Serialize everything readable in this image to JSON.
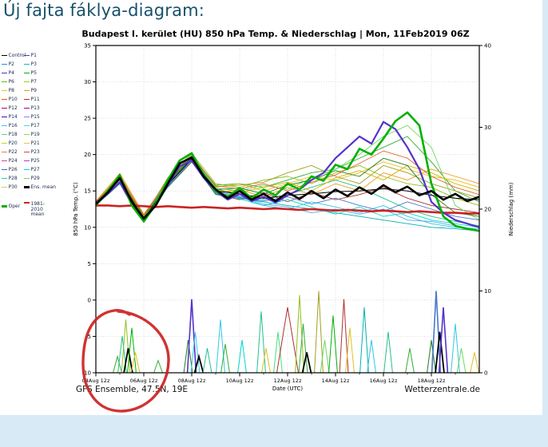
{
  "page": {
    "heading": "Új fajta fáklya-diagram:",
    "footer_left": "GFS Ensemble, 47.5N, 19E",
    "footer_right": "Wetterzentrale.de"
  },
  "annotation": {
    "hand_drawn_circle": {
      "color": "#cc2222",
      "circles": "precipitation spike cluster near 05-06 Aug"
    }
  },
  "legend": {
    "items": [
      {
        "label": "Control",
        "color": "#000000"
      },
      {
        "label": "P1",
        "color": "#4040c0"
      },
      {
        "label": "P2",
        "color": "#00a0e0"
      },
      {
        "label": "P3",
        "color": "#00c0c0"
      },
      {
        "label": "P4",
        "color": "#5533cc"
      },
      {
        "label": "P5",
        "color": "#00b000"
      },
      {
        "label": "P6",
        "color": "#60c000"
      },
      {
        "label": "P7",
        "color": "#a0d000"
      },
      {
        "label": "P8",
        "color": "#e0d000"
      },
      {
        "label": "P9",
        "color": "#f0a000"
      },
      {
        "label": "P10",
        "color": "#e06000"
      },
      {
        "label": "P11",
        "color": "#d02020"
      },
      {
        "label": "P12",
        "color": "#c00060"
      },
      {
        "label": "P13",
        "color": "#a000a0"
      },
      {
        "label": "P14",
        "color": "#6000c0"
      },
      {
        "label": "P15",
        "color": "#8080ff"
      },
      {
        "label": "P16",
        "color": "#40c0ff"
      },
      {
        "label": "P17",
        "color": "#40e0d0"
      },
      {
        "label": "P18",
        "color": "#40e080"
      },
      {
        "label": "P19",
        "color": "#80e040"
      },
      {
        "label": "P20",
        "color": "#c0e000"
      },
      {
        "label": "P21",
        "color": "#f0c040"
      },
      {
        "label": "P22",
        "color": "#f08040"
      },
      {
        "label": "P23",
        "color": "#e04040"
      },
      {
        "label": "P24",
        "color": "#e040a0"
      },
      {
        "label": "P25",
        "color": "#a040e0"
      },
      {
        "label": "P26",
        "color": "#4060e0"
      },
      {
        "label": "P27",
        "color": "#00d0f0"
      },
      {
        "label": "P28",
        "color": "#00e0a0"
      },
      {
        "label": "P29",
        "color": "#80d060"
      },
      {
        "label": "P30",
        "color": "#d0d060"
      },
      {
        "label": "Ens. mean",
        "color": "#000000",
        "bold": true
      },
      {
        "label": "Oper",
        "color": "#00b000",
        "bold": true,
        "gap": true
      },
      {
        "label": "1981-2010 mean",
        "color": "#cc2222",
        "gap": true,
        "wrap": true
      }
    ]
  },
  "chart_data": {
    "type": "line",
    "subtype": "ensemble-plume",
    "title": "Budapest I. kerület  (HU)  850 hPa Temp. & Niederschlag | Mon, 11Feb2019 06Z",
    "x_axis": {
      "label": "Date (UTC)",
      "tick_labels": [
        "04Aug 12z",
        "06Aug 12z",
        "08Aug 12z",
        "10Aug 12z",
        "12Aug 12z",
        "14Aug 12z",
        "16Aug 12z",
        "18Aug 12z"
      ],
      "tick_days": [
        0,
        2,
        4,
        6,
        8,
        10,
        12,
        14
      ],
      "range_days": [
        0,
        16
      ]
    },
    "y_left": {
      "label": "850 hPa Temp. (°C)",
      "min": -10,
      "max": 35,
      "ticks": [
        35,
        30,
        25,
        20,
        15,
        10,
        5,
        0,
        -5,
        -10
      ]
    },
    "y_right": {
      "label": "Niederschlag (mm)",
      "min": 0,
      "max": 40,
      "ticks": [
        40,
        30,
        20,
        10,
        0
      ]
    },
    "main_series": [
      {
        "name": "1981-2010 mean",
        "color": "#cc2222",
        "width": 2.6,
        "step": 0.5,
        "values": [
          13.0,
          13.0,
          12.9,
          13.0,
          12.9,
          12.8,
          12.9,
          12.8,
          12.7,
          12.8,
          12.7,
          12.6,
          12.7,
          12.6,
          12.5,
          12.6,
          12.5,
          12.4,
          12.5,
          12.4,
          12.3,
          12.4,
          12.3,
          12.2,
          12.3,
          12.2,
          12.1,
          12.2,
          12.1,
          12.0,
          12.0,
          11.9,
          11.9
        ]
      },
      {
        "name": "Control",
        "color": "#000000",
        "width": 1.0,
        "step": 1,
        "values": [
          13.1,
          16.6,
          11.1,
          15.9,
          19.4,
          15.0,
          14.6,
          14.0,
          14.4,
          14.6,
          14.9,
          15.0,
          15.3,
          15.0,
          14.4,
          14.0,
          13.8
        ]
      },
      {
        "name": "P4 highlighted member",
        "color": "#5533cc",
        "width": 2.2,
        "step": 0.5,
        "values": [
          13.4,
          14.6,
          16.2,
          13.2,
          11.0,
          13.0,
          15.8,
          18.4,
          19.2,
          16.8,
          15.0,
          13.8,
          14.6,
          13.6,
          14.2,
          13.4,
          14.4,
          15.2,
          16.5,
          17.5,
          19.5,
          21.0,
          22.5,
          21.5,
          24.5,
          23.5,
          21.0,
          18.0,
          13.5,
          12.0,
          11.0,
          10.5,
          10.0
        ]
      },
      {
        "name": "Oper",
        "color": "#00b000",
        "width": 2.6,
        "step": 0.5,
        "values": [
          13.0,
          15.0,
          17.2,
          13.0,
          10.8,
          13.2,
          16.5,
          19.2,
          20.2,
          17.2,
          15.0,
          14.2,
          15.4,
          14.0,
          15.2,
          14.4,
          16.0,
          15.2,
          17.0,
          16.4,
          18.6,
          18.0,
          20.8,
          20.0,
          22.2,
          24.6,
          25.8,
          24.0,
          16.0,
          11.5,
          10.2,
          9.8,
          9.5
        ]
      },
      {
        "name": "Ens. mean",
        "color": "#000000",
        "width": 2.6,
        "step": 0.5,
        "values": [
          13.2,
          14.8,
          16.8,
          13.5,
          11.2,
          13.0,
          16.0,
          18.8,
          19.6,
          17.0,
          15.2,
          14.0,
          15.0,
          13.8,
          14.6,
          13.6,
          14.8,
          13.9,
          15.0,
          14.0,
          15.2,
          14.3,
          15.5,
          14.6,
          15.8,
          14.8,
          15.6,
          14.4,
          15.0,
          13.8,
          14.6,
          13.6,
          14.2
        ]
      }
    ],
    "members": [
      {
        "color": "#00b0b0",
        "step": 1,
        "values": [
          13.0,
          16.5,
          11.0,
          15.5,
          19.0,
          14.5,
          14.0,
          13.5,
          13.0,
          12.5,
          12.0,
          11.5,
          11.0,
          10.5,
          10.0,
          9.8,
          9.5
        ]
      },
      {
        "color": "#30c8e8",
        "step": 1,
        "values": [
          13.5,
          17.0,
          11.5,
          16.5,
          20.0,
          15.0,
          14.2,
          13.0,
          12.5,
          13.5,
          12.8,
          12.0,
          13.0,
          11.5,
          10.5,
          10.0,
          9.8
        ]
      },
      {
        "color": "#30b030",
        "step": 1,
        "values": [
          13.0,
          16.0,
          10.8,
          16.2,
          19.8,
          15.8,
          16.0,
          15.5,
          16.5,
          17.5,
          18.0,
          19.5,
          21.0,
          22.5,
          19.0,
          15.0,
          13.5
        ]
      },
      {
        "color": "#90c020",
        "step": 1,
        "values": [
          13.4,
          17.2,
          11.4,
          16.8,
          20.2,
          16.0,
          15.5,
          16.5,
          17.0,
          16.0,
          17.5,
          18.5,
          17.0,
          16.0,
          15.5,
          14.0,
          13.0
        ]
      },
      {
        "color": "#e0c020",
        "step": 1,
        "values": [
          13.2,
          16.6,
          11.0,
          15.8,
          19.4,
          15.5,
          16.0,
          15.0,
          16.0,
          17.0,
          16.5,
          17.5,
          19.0,
          18.0,
          17.0,
          16.5,
          15.5
        ]
      },
      {
        "color": "#f09820",
        "step": 1,
        "values": [
          13.6,
          17.4,
          11.8,
          16.4,
          19.2,
          14.8,
          15.2,
          14.2,
          15.5,
          14.5,
          16.0,
          15.0,
          17.5,
          16.5,
          18.0,
          17.0,
          16.0
        ]
      },
      {
        "color": "#b03030",
        "step": 1,
        "values": [
          13.0,
          16.2,
          10.9,
          15.6,
          19.0,
          14.6,
          13.8,
          14.8,
          13.5,
          14.8,
          13.8,
          14.5,
          15.5,
          14.0,
          13.0,
          12.5,
          12.0
        ]
      },
      {
        "color": "#20c090",
        "step": 1,
        "values": [
          13.3,
          16.9,
          11.3,
          16.1,
          19.7,
          15.3,
          14.5,
          13.8,
          14.5,
          15.5,
          16.5,
          15.5,
          14.0,
          12.5,
          11.5,
          10.8,
          10.2
        ]
      },
      {
        "color": "#58a8e8",
        "step": 1,
        "values": [
          13.1,
          16.4,
          11.1,
          15.9,
          19.3,
          14.9,
          14.3,
          13.2,
          12.8,
          12.0,
          12.5,
          11.8,
          12.5,
          11.0,
          10.8,
          10.2,
          9.6
        ]
      },
      {
        "color": "#a0a020",
        "step": 1,
        "values": [
          13.5,
          17.1,
          11.6,
          16.6,
          20.0,
          15.6,
          15.8,
          16.2,
          17.5,
          18.5,
          17.0,
          16.0,
          18.5,
          17.5,
          16.0,
          15.0,
          14.0
        ]
      },
      {
        "color": "#70d860",
        "step": 1,
        "values": [
          13.2,
          16.7,
          11.2,
          16.3,
          19.9,
          15.4,
          15.0,
          15.8,
          15.2,
          16.8,
          18.0,
          20.0,
          22.5,
          24.0,
          21.0,
          13.0,
          11.0
        ]
      },
      {
        "color": "#d8b000",
        "step": 1,
        "values": [
          13.4,
          16.5,
          11.5,
          16.0,
          19.5,
          15.1,
          14.8,
          15.5,
          16.2,
          15.0,
          16.8,
          17.8,
          16.5,
          18.5,
          17.5,
          16.0,
          15.0
        ]
      },
      {
        "color": "#00d8c8",
        "step": 1,
        "values": [
          13.1,
          16.3,
          11.0,
          15.7,
          19.1,
          14.7,
          13.9,
          13.0,
          13.8,
          12.8,
          11.8,
          12.8,
          11.5,
          12.0,
          11.0,
          10.5,
          10.0
        ]
      },
      {
        "color": "#208020",
        "step": 1,
        "values": [
          13.3,
          17.0,
          11.4,
          16.2,
          19.6,
          15.2,
          15.4,
          14.6,
          15.8,
          16.5,
          17.8,
          17.0,
          19.5,
          18.5,
          14.5,
          12.0,
          11.5
        ]
      },
      {
        "color": "#e06828",
        "step": 1,
        "values": [
          13.5,
          16.8,
          11.7,
          16.5,
          19.8,
          15.7,
          15.3,
          16.0,
          15.0,
          16.2,
          17.2,
          18.8,
          20.5,
          19.5,
          17.0,
          15.5,
          14.5
        ]
      },
      {
        "color": "#4878c8",
        "step": 1,
        "values": [
          13.0,
          16.1,
          10.9,
          15.8,
          19.2,
          14.8,
          14.1,
          13.6,
          14.2,
          13.2,
          14.0,
          13.0,
          12.2,
          13.5,
          12.5,
          11.5,
          11.0
        ]
      }
    ],
    "precip_spikes": [
      {
        "x": 0.9,
        "h": 2.0,
        "color": "#30b030"
      },
      {
        "x": 1.1,
        "h": 4.5,
        "color": "#20c090"
      },
      {
        "x": 1.25,
        "h": 6.5,
        "color": "#90c020"
      },
      {
        "x": 1.35,
        "h": 3.0,
        "color": "#000000",
        "lw": 1.8
      },
      {
        "x": 1.5,
        "h": 5.5,
        "color": "#00b000"
      },
      {
        "x": 1.65,
        "h": 2.5,
        "color": "#e0c020"
      },
      {
        "x": 2.6,
        "h": 1.5,
        "color": "#30b030"
      },
      {
        "x": 3.85,
        "h": 4.0,
        "color": "#208020"
      },
      {
        "x": 4.0,
        "h": 9.0,
        "color": "#5533cc",
        "lw": 1.6
      },
      {
        "x": 4.15,
        "h": 5.0,
        "color": "#30c8e8"
      },
      {
        "x": 4.3,
        "h": 2.0,
        "color": "#000000",
        "lw": 1.8
      },
      {
        "x": 4.65,
        "h": 3.0,
        "color": "#20c090"
      },
      {
        "x": 5.2,
        "h": 6.5,
        "color": "#30c8e8"
      },
      {
        "x": 5.4,
        "h": 3.5,
        "color": "#30b030"
      },
      {
        "x": 6.1,
        "h": 4.0,
        "color": "#00d8c8"
      },
      {
        "x": 6.9,
        "h": 7.5,
        "color": "#20c090"
      },
      {
        "x": 7.1,
        "h": 3.0,
        "color": "#e0c020"
      },
      {
        "x": 7.6,
        "h": 5.0,
        "color": "#40e080"
      },
      {
        "x": 8.0,
        "h": 8.0,
        "color": "#b03030",
        "w": 0.45
      },
      {
        "x": 8.5,
        "h": 9.5,
        "color": "#90c020"
      },
      {
        "x": 8.65,
        "h": 6.0,
        "color": "#30b030"
      },
      {
        "x": 8.8,
        "h": 2.5,
        "color": "#000000",
        "lw": 1.8
      },
      {
        "x": 9.3,
        "h": 10.0,
        "color": "#a0a020"
      },
      {
        "x": 9.55,
        "h": 4.0,
        "color": "#70d860"
      },
      {
        "x": 9.9,
        "h": 7.0,
        "color": "#00b000"
      },
      {
        "x": 10.35,
        "h": 9.0,
        "color": "#b03030"
      },
      {
        "x": 10.6,
        "h": 5.5,
        "color": "#e0c020"
      },
      {
        "x": 11.2,
        "h": 8.0,
        "color": "#00b0b0"
      },
      {
        "x": 11.5,
        "h": 4.0,
        "color": "#30c8e8"
      },
      {
        "x": 12.2,
        "h": 5.0,
        "color": "#20c090"
      },
      {
        "x": 13.1,
        "h": 3.0,
        "color": "#30b030"
      },
      {
        "x": 14.0,
        "h": 4.0,
        "color": "#208020"
      },
      {
        "x": 14.2,
        "h": 10.0,
        "color": "#4878c8",
        "lw": 1.6
      },
      {
        "x": 14.35,
        "h": 5.0,
        "color": "#000000",
        "lw": 1.8
      },
      {
        "x": 14.5,
        "h": 8.0,
        "color": "#5533cc",
        "lw": 1.6
      },
      {
        "x": 15.0,
        "h": 6.0,
        "color": "#30c8e8"
      },
      {
        "x": 15.25,
        "h": 3.0,
        "color": "#70d860"
      },
      {
        "x": 15.8,
        "h": 2.5,
        "color": "#e0c020"
      }
    ]
  }
}
